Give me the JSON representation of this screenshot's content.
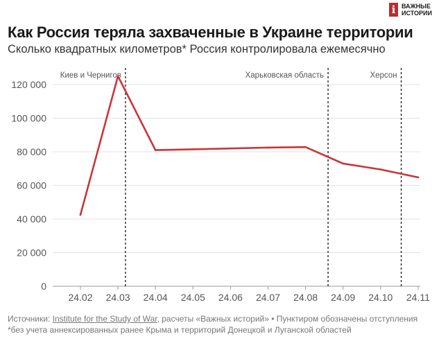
{
  "logo": {
    "mark": "i",
    "line1": "ВАЖНЫЕ",
    "line2": "ИСТОРИИ"
  },
  "title": "Как Россия теряла захваченные в Украине территории",
  "subtitle": "Сколько квадратных километров* Россия контролировала ежемесячно",
  "footnote": {
    "sources_label": "Источники: ",
    "source_link": "Institute for the Study of War",
    "sources_rest": ", расчеты «Важных историй» • Пунктиром обозначены отступления",
    "note": "*без учета аннексированных ранее Крыма и территорий Донецкой и Луганской областей"
  },
  "colors": {
    "line": "#c8353a",
    "logo": "#b4302f",
    "grid": "#e1e1e1",
    "event": "#222222"
  },
  "chart_data": {
    "type": "line",
    "title": "Как Россия теряла захваченные в Украине территории",
    "ylabel": "",
    "xlabel": "",
    "categories": [
      "24.02",
      "24.03",
      "24.04",
      "24.05",
      "24.06",
      "24.07",
      "24.08",
      "24.09",
      "24.10",
      "24.11"
    ],
    "series": [
      {
        "values": [
          42500,
          125000,
          81000,
          81500,
          82000,
          82500,
          82800,
          73000,
          69500,
          64800
        ]
      }
    ],
    "ylim": [
      0,
      120000
    ],
    "yticks": [
      0,
      20000,
      40000,
      60000,
      80000,
      100000,
      120000
    ],
    "ytick_labels": [
      "0",
      "20 000",
      "40 000",
      "60 000",
      "80 000",
      "100 000",
      "120 000"
    ],
    "grid": true,
    "events": [
      {
        "label": "Киев и Чернигов",
        "x": 1.2
      },
      {
        "label": "Харьковская область",
        "x": 6.6
      },
      {
        "label": "Херсон",
        "x": 8.55
      }
    ]
  }
}
